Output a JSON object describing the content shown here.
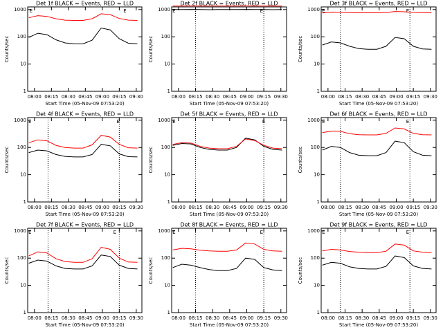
{
  "chart_data": [
    {
      "type": "line",
      "title": "Det 1f BLACK = Events, RED = LLD",
      "xlabel": "Start Time (05-Nov-09 07:53:20)",
      "ylabel": "Counts/sec",
      "log_y": true,
      "x": [
        475,
        483,
        491,
        499,
        507,
        515,
        523,
        531,
        539,
        547,
        555,
        563,
        571
      ],
      "series": [
        {
          "name": "Events",
          "color": "#000000",
          "values": [
            95,
            135,
            120,
            78,
            60,
            55,
            55,
            75,
            210,
            180,
            85,
            58,
            55
          ]
        },
        {
          "name": "LLD",
          "color": "#ff0000",
          "values": [
            500,
            600,
            560,
            460,
            410,
            400,
            400,
            460,
            700,
            650,
            470,
            410,
            400
          ]
        }
      ],
      "xlim": [
        474,
        575
      ],
      "ylim": [
        1,
        1250
      ],
      "yticks": [
        1,
        10,
        100,
        1000
      ],
      "xticks": [
        {
          "value": 480,
          "label": "08:00"
        },
        {
          "value": 495,
          "label": "08:15"
        },
        {
          "value": 510,
          "label": "08:30"
        },
        {
          "value": 525,
          "label": "08:45"
        },
        {
          "value": 540,
          "label": "09:00"
        },
        {
          "value": 555,
          "label": "09:15"
        },
        {
          "value": 570,
          "label": "09:30"
        }
      ],
      "annotations": [
        {
          "text": "E",
          "x": 477
        },
        {
          "text": "E",
          "x": 560
        }
      ],
      "vlines": []
    },
    {
      "type": "line",
      "title": "Det 2f BLACK = Events, RED = LLD",
      "xlabel": "Start Time (05-Nov-09 07:53:20)",
      "ylabel": "Counts/sec",
      "log_y": true,
      "x": [
        475,
        483,
        491,
        499,
        507,
        515,
        523,
        531,
        539,
        547,
        555,
        563,
        571
      ],
      "series": [
        {
          "name": "Events",
          "color": "#000000",
          "values": [
            1000,
            1000,
            1010,
            1000,
            990,
            1000,
            1000,
            1000,
            1010,
            1000,
            1000,
            990,
            1000
          ]
        },
        {
          "name": "LLD",
          "color": "#ff0000",
          "values": [
            1350,
            1350,
            1360,
            1350,
            1340,
            1350,
            1350,
            1350,
            1360,
            1350,
            1350,
            1340,
            1350
          ]
        }
      ],
      "xlim": [
        474,
        575
      ],
      "ylim": [
        1,
        1250
      ],
      "yticks": [
        1,
        10,
        100,
        1000
      ],
      "xticks": [
        {
          "value": 480,
          "label": "08:00"
        },
        {
          "value": 495,
          "label": "08:15"
        },
        {
          "value": 510,
          "label": "08:30"
        },
        {
          "value": 525,
          "label": "08:45"
        },
        {
          "value": 540,
          "label": "09:00"
        },
        {
          "value": 555,
          "label": "09:15"
        },
        {
          "value": 570,
          "label": "09:30"
        }
      ],
      "annotations": [
        {
          "text": "E",
          "x": 476
        },
        {
          "text": "E",
          "x": 553
        }
      ],
      "vlines": [
        495,
        555
      ]
    },
    {
      "type": "line",
      "title": "Det 3f BLACK = Events, RED = LLD",
      "xlabel": "Start Time (05-Nov-09 07:53:20)",
      "ylabel": "Counts/sec",
      "log_y": true,
      "x": [
        475,
        483,
        491,
        499,
        507,
        515,
        523,
        531,
        539,
        547,
        555,
        563,
        571
      ],
      "series": [
        {
          "name": "Events",
          "color": "#000000",
          "values": [
            50,
            65,
            60,
            45,
            37,
            35,
            35,
            45,
            95,
            85,
            45,
            36,
            35
          ]
        },
        {
          "name": "LLD",
          "color": "#ff0000",
          "values": [
            750,
            800,
            790,
            770,
            760,
            760,
            760,
            780,
            850,
            830,
            790,
            770,
            760
          ]
        }
      ],
      "xlim": [
        474,
        575
      ],
      "ylim": [
        1,
        1250
      ],
      "yticks": [
        1,
        10,
        100,
        1000
      ],
      "xticks": [
        {
          "value": 480,
          "label": "08:00"
        },
        {
          "value": 495,
          "label": "08:15"
        },
        {
          "value": 510,
          "label": "08:30"
        },
        {
          "value": 525,
          "label": "08:45"
        },
        {
          "value": 540,
          "label": "09:00"
        },
        {
          "value": 555,
          "label": "09:15"
        },
        {
          "value": 570,
          "label": "09:30"
        }
      ],
      "annotations": [
        {
          "text": "E",
          "x": 476
        },
        {
          "text": "E",
          "x": 550
        }
      ],
      "vlines": [
        491,
        552
      ]
    },
    {
      "type": "line",
      "title": "Det 4f BLACK = Events, RED = LLD",
      "xlabel": "Start Time (05-Nov-09 07:53:20)",
      "ylabel": "Counts/sec",
      "log_y": true,
      "x": [
        475,
        483,
        491,
        499,
        507,
        515,
        523,
        531,
        539,
        547,
        555,
        563,
        571
      ],
      "series": [
        {
          "name": "Events",
          "color": "#000000",
          "values": [
            65,
            80,
            75,
            55,
            47,
            45,
            45,
            55,
            130,
            115,
            58,
            46,
            45
          ]
        },
        {
          "name": "LLD",
          "color": "#ff0000",
          "values": [
            150,
            190,
            175,
            120,
            100,
            95,
            95,
            125,
            280,
            240,
            130,
            98,
            95
          ]
        }
      ],
      "xlim": [
        474,
        575
      ],
      "ylim": [
        1,
        1250
      ],
      "yticks": [
        1,
        10,
        100,
        1000
      ],
      "xticks": [
        {
          "value": 480,
          "label": "08:00"
        },
        {
          "value": 495,
          "label": "08:15"
        },
        {
          "value": 510,
          "label": "08:30"
        },
        {
          "value": 525,
          "label": "08:45"
        },
        {
          "value": 540,
          "label": "09:00"
        },
        {
          "value": 555,
          "label": "09:15"
        },
        {
          "value": 570,
          "label": "09:30"
        }
      ],
      "annotations": [
        {
          "text": "E",
          "x": 476
        },
        {
          "text": "E",
          "x": 554
        }
      ],
      "vlines": [
        492,
        555
      ]
    },
    {
      "type": "line",
      "title": "Det 5f BLACK = Events, RED = LLD",
      "xlabel": "Start Time (05-Nov-09 07:53:20)",
      "ylabel": "Counts/sec",
      "log_y": true,
      "x": [
        475,
        483,
        491,
        499,
        507,
        515,
        523,
        531,
        539,
        547,
        555,
        563,
        571
      ],
      "series": [
        {
          "name": "Events",
          "color": "#000000",
          "values": [
            120,
            140,
            135,
            100,
            85,
            80,
            80,
            100,
            220,
            190,
            110,
            85,
            80
          ]
        },
        {
          "name": "LLD",
          "color": "#ff0000",
          "values": [
            130,
            150,
            145,
            110,
            95,
            90,
            90,
            110,
            205,
            180,
            120,
            95,
            90
          ]
        }
      ],
      "xlim": [
        474,
        575
      ],
      "ylim": [
        1,
        1250
      ],
      "yticks": [
        1,
        10,
        100,
        1000
      ],
      "xticks": [
        {
          "value": 480,
          "label": "08:00"
        },
        {
          "value": 495,
          "label": "08:15"
        },
        {
          "value": 510,
          "label": "08:30"
        },
        {
          "value": 525,
          "label": "08:45"
        },
        {
          "value": 540,
          "label": "09:00"
        },
        {
          "value": 555,
          "label": "09:15"
        },
        {
          "value": 570,
          "label": "09:30"
        }
      ],
      "annotations": [
        {
          "text": "E",
          "x": 476
        },
        {
          "text": "E",
          "x": 555
        }
      ],
      "vlines": [
        495,
        555
      ]
    },
    {
      "type": "line",
      "title": "Det 6f BLACK = Events, RED = LLD",
      "xlabel": "Start Time (05-Nov-09 07:53:20)",
      "ylabel": "Counts/sec",
      "log_y": true,
      "x": [
        475,
        483,
        491,
        499,
        507,
        515,
        523,
        531,
        539,
        547,
        555,
        563,
        571
      ],
      "series": [
        {
          "name": "Events",
          "color": "#000000",
          "values": [
            80,
            110,
            100,
            65,
            52,
            50,
            50,
            65,
            170,
            150,
            70,
            52,
            50
          ]
        },
        {
          "name": "LLD",
          "color": "#ff0000",
          "values": [
            350,
            400,
            390,
            320,
            295,
            290,
            290,
            330,
            520,
            480,
            330,
            295,
            290
          ]
        }
      ],
      "xlim": [
        474,
        575
      ],
      "ylim": [
        1,
        1250
      ],
      "yticks": [
        1,
        10,
        100,
        1000
      ],
      "xticks": [
        {
          "value": 480,
          "label": "08:00"
        },
        {
          "value": 495,
          "label": "08:15"
        },
        {
          "value": 510,
          "label": "08:30"
        },
        {
          "value": 525,
          "label": "08:45"
        },
        {
          "value": 540,
          "label": "09:00"
        },
        {
          "value": 555,
          "label": "09:15"
        },
        {
          "value": 570,
          "label": "09:30"
        }
      ],
      "annotations": [
        {
          "text": "E",
          "x": 476
        },
        {
          "text": "E",
          "x": 550
        }
      ],
      "vlines": [
        491,
        552
      ]
    },
    {
      "type": "line",
      "title": "Det 7f BLACK = Events, RED = LLD",
      "xlabel": "Start Time (05-Nov-09 07:53:20)",
      "ylabel": "Counts/sec",
      "log_y": true,
      "x": [
        475,
        483,
        491,
        499,
        507,
        515,
        523,
        531,
        539,
        547,
        555,
        563,
        571
      ],
      "series": [
        {
          "name": "Events",
          "color": "#000000",
          "values": [
            65,
            85,
            78,
            52,
            42,
            40,
            40,
            52,
            130,
            115,
            55,
            42,
            40
          ]
        },
        {
          "name": "LLD",
          "color": "#ff0000",
          "values": [
            120,
            170,
            155,
            95,
            75,
            70,
            70,
            95,
            250,
            210,
            100,
            72,
            70
          ]
        }
      ],
      "xlim": [
        474,
        575
      ],
      "ylim": [
        1,
        1250
      ],
      "yticks": [
        1,
        10,
        100,
        1000
      ],
      "xticks": [
        {
          "value": 480,
          "label": "08:00"
        },
        {
          "value": 495,
          "label": "08:15"
        },
        {
          "value": 510,
          "label": "08:30"
        },
        {
          "value": 525,
          "label": "08:45"
        },
        {
          "value": 540,
          "label": "09:00"
        },
        {
          "value": 555,
          "label": "09:15"
        },
        {
          "value": 570,
          "label": "09:30"
        }
      ],
      "annotations": [
        {
          "text": "E",
          "x": 476
        },
        {
          "text": "E",
          "x": 551
        }
      ],
      "vlines": [
        492,
        555
      ]
    },
    {
      "type": "line",
      "title": "Det 8f BLACK = Events, RED = LLD",
      "xlabel": "Start Time (05-Nov-09 07:53:20)",
      "ylabel": "Counts/sec",
      "log_y": true,
      "x": [
        475,
        483,
        491,
        499,
        507,
        515,
        523,
        531,
        539,
        547,
        555,
        563,
        571
      ],
      "series": [
        {
          "name": "Events",
          "color": "#000000",
          "values": [
            45,
            60,
            55,
            45,
            38,
            35,
            35,
            42,
            100,
            90,
            45,
            37,
            35
          ]
        },
        {
          "name": "LLD",
          "color": "#ff0000",
          "values": [
            200,
            230,
            220,
            195,
            185,
            180,
            180,
            200,
            360,
            330,
            210,
            185,
            180
          ]
        }
      ],
      "xlim": [
        474,
        575
      ],
      "ylim": [
        1,
        1250
      ],
      "yticks": [
        1,
        10,
        100,
        1000
      ],
      "xticks": [
        {
          "value": 480,
          "label": "08:00"
        },
        {
          "value": 495,
          "label": "08:15"
        },
        {
          "value": 510,
          "label": "08:30"
        },
        {
          "value": 525,
          "label": "08:45"
        },
        {
          "value": 540,
          "label": "09:00"
        },
        {
          "value": 555,
          "label": "09:15"
        },
        {
          "value": 570,
          "label": "09:30"
        }
      ],
      "annotations": [
        {
          "text": "E",
          "x": 476
        },
        {
          "text": "E",
          "x": 553
        }
      ],
      "vlines": [
        495,
        555
      ]
    },
    {
      "type": "line",
      "title": "Det 9f BLACK = Events, RED = LLD",
      "xlabel": "Start Time (05-Nov-09 07:53:20)",
      "ylabel": "Counts/sec",
      "log_y": true,
      "x": [
        475,
        483,
        491,
        499,
        507,
        515,
        523,
        531,
        539,
        547,
        555,
        563,
        571
      ],
      "series": [
        {
          "name": "Events",
          "color": "#000000",
          "values": [
            55,
            70,
            65,
            48,
            42,
            40,
            40,
            50,
            120,
            105,
            52,
            42,
            40
          ]
        },
        {
          "name": "LLD",
          "color": "#ff0000",
          "values": [
            185,
            210,
            200,
            175,
            165,
            160,
            160,
            180,
            330,
            300,
            185,
            165,
            160
          ]
        }
      ],
      "xlim": [
        474,
        575
      ],
      "ylim": [
        1,
        1250
      ],
      "yticks": [
        1,
        10,
        100,
        1000
      ],
      "xticks": [
        {
          "value": 480,
          "label": "08:00"
        },
        {
          "value": 495,
          "label": "08:15"
        },
        {
          "value": 510,
          "label": "08:30"
        },
        {
          "value": 525,
          "label": "08:45"
        },
        {
          "value": 540,
          "label": "09:00"
        },
        {
          "value": 555,
          "label": "09:15"
        },
        {
          "value": 570,
          "label": "09:30"
        }
      ],
      "annotations": [
        {
          "text": "E",
          "x": 476
        },
        {
          "text": "E",
          "x": 550
        }
      ],
      "vlines": [
        491,
        552
      ]
    }
  ]
}
